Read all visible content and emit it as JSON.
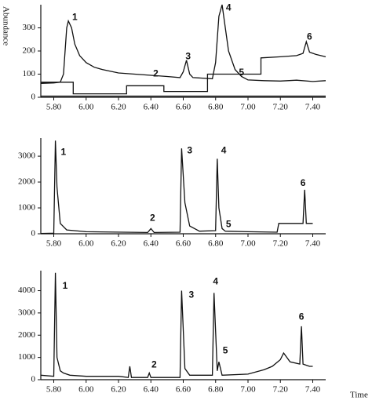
{
  "y_label": "Abundance",
  "x_label": "Time",
  "chart_data": [
    {
      "type": "line",
      "xlim": [
        5.72,
        7.48
      ],
      "ylim": [
        0,
        400
      ],
      "xticks": [
        {
          "value": 5.8,
          "label": "5.80"
        },
        {
          "value": 6.0,
          "label": "6.00"
        },
        {
          "value": 6.2,
          "label": "6.20"
        },
        {
          "value": 6.4,
          "label": "6.40"
        },
        {
          "value": 6.6,
          "label": "6.60"
        },
        {
          "value": 6.8,
          "label": "6.80"
        },
        {
          "value": 7.0,
          "label": "7.00"
        },
        {
          "value": 7.2,
          "label": "7.20"
        },
        {
          "value": 7.4,
          "label": "7.40"
        }
      ],
      "yticks": [
        0,
        100,
        200,
        300
      ],
      "series": [
        {
          "color": "#111",
          "x": [
            5.72,
            5.8,
            5.84,
            5.86,
            5.88,
            5.89,
            5.91,
            5.93,
            5.96,
            6.0,
            6.05,
            6.1,
            6.2,
            6.3,
            6.4,
            6.5,
            6.58,
            6.6,
            6.62,
            6.64,
            6.66,
            6.78,
            6.8,
            6.82,
            6.84,
            6.86,
            6.88,
            6.92,
            6.96,
            7.0,
            7.1,
            7.2,
            7.3,
            7.4,
            7.48
          ],
          "values": [
            60,
            62,
            65,
            100,
            300,
            330,
            300,
            230,
            180,
            150,
            130,
            120,
            105,
            100,
            95,
            90,
            85,
            110,
            160,
            100,
            85,
            80,
            150,
            350,
            400,
            300,
            200,
            120,
            90,
            75,
            72,
            70,
            74,
            68,
            72
          ]
        },
        {
          "color": "#111",
          "x": [
            5.72,
            5.92,
            5.92,
            6.25,
            6.25,
            6.48,
            6.48,
            6.75,
            6.75,
            7.08,
            7.08,
            7.2,
            7.3,
            7.34,
            7.36,
            7.38,
            7.42,
            7.48
          ],
          "values": [
            65,
            65,
            15,
            15,
            50,
            50,
            25,
            25,
            100,
            100,
            170,
            175,
            180,
            190,
            240,
            195,
            185,
            175
          ]
        },
        {
          "color": "#111",
          "x": [
            5.72,
            7.48
          ],
          "values": [
            5,
            5
          ]
        }
      ],
      "annotations": [
        {
          "text": "1",
          "x": 5.93,
          "y": 345
        },
        {
          "text": "2",
          "x": 6.43,
          "y": 100
        },
        {
          "text": "3",
          "x": 6.63,
          "y": 175
        },
        {
          "text": "4",
          "x": 6.88,
          "y": 385
        },
        {
          "text": "5",
          "x": 6.96,
          "y": 105
        },
        {
          "text": "6",
          "x": 7.38,
          "y": 260
        }
      ]
    },
    {
      "type": "line",
      "xlim": [
        5.72,
        7.48
      ],
      "ylim": [
        0,
        3700
      ],
      "xticks": [
        {
          "value": 5.8,
          "label": "5.80"
        },
        {
          "value": 6.0,
          "label": "6.00"
        },
        {
          "value": 6.2,
          "label": "6.20"
        },
        {
          "value": 6.4,
          "label": "6.40"
        },
        {
          "value": 6.6,
          "label": "6.60"
        },
        {
          "value": 6.8,
          "label": "6.80"
        },
        {
          "value": 7.0,
          "label": "7.00"
        },
        {
          "value": 7.2,
          "label": "7.20"
        },
        {
          "value": 7.4,
          "label": "7.40"
        }
      ],
      "yticks": [
        0,
        1000,
        2000,
        3000
      ],
      "series": [
        {
          "color": "#111",
          "x": [
            5.72,
            5.8,
            5.81,
            5.82,
            5.84,
            5.88,
            6.0,
            6.38,
            6.4,
            6.42,
            6.58,
            6.59,
            6.61,
            6.64,
            6.7,
            6.8,
            6.81,
            6.82,
            6.84,
            6.86,
            7.0,
            7.18,
            7.19,
            7.34,
            7.35,
            7.36,
            7.4
          ],
          "values": [
            10,
            20,
            3600,
            1800,
            400,
            150,
            80,
            50,
            200,
            50,
            60,
            3300,
            1200,
            300,
            100,
            120,
            2900,
            1000,
            200,
            100,
            80,
            60,
            400,
            400,
            1700,
            400,
            400
          ]
        }
      ],
      "annotations": [
        {
          "text": "1",
          "x": 5.86,
          "y": 3150
        },
        {
          "text": "2",
          "x": 6.41,
          "y": 600
        },
        {
          "text": "3",
          "x": 6.64,
          "y": 3200
        },
        {
          "text": "4",
          "x": 6.85,
          "y": 3200
        },
        {
          "text": "5",
          "x": 6.88,
          "y": 350
        },
        {
          "text": "6",
          "x": 7.34,
          "y": 1950
        }
      ]
    },
    {
      "type": "line",
      "xlim": [
        5.72,
        7.48
      ],
      "ylim": [
        0,
        4900
      ],
      "xticks": [
        {
          "value": 5.8,
          "label": "5.80"
        },
        {
          "value": 6.0,
          "label": "6.00"
        },
        {
          "value": 6.2,
          "label": "6.20"
        },
        {
          "value": 6.4,
          "label": "6.40"
        },
        {
          "value": 6.6,
          "label": "6.60"
        },
        {
          "value": 6.8,
          "label": "6.80"
        },
        {
          "value": 7.0,
          "label": "7.00"
        },
        {
          "value": 7.2,
          "label": "7.20"
        },
        {
          "value": 7.4,
          "label": "7.40"
        }
      ],
      "yticks": [
        0,
        1000,
        2000,
        3000,
        4000
      ],
      "series": [
        {
          "color": "#111",
          "x": [
            5.72,
            5.8,
            5.81,
            5.82,
            5.84,
            5.86,
            5.9,
            6.0,
            6.2,
            6.26,
            6.27,
            6.28,
            6.38,
            6.39,
            6.4,
            6.58,
            6.59,
            6.61,
            6.64,
            6.78,
            6.79,
            6.81,
            6.82,
            6.84,
            7.0,
            7.1,
            7.15,
            7.2,
            7.22,
            7.26,
            7.32,
            7.33,
            7.34,
            7.38,
            7.4
          ],
          "values": [
            200,
            150,
            4800,
            1000,
            400,
            300,
            200,
            150,
            150,
            100,
            600,
            100,
            100,
            300,
            100,
            100,
            4000,
            500,
            200,
            200,
            3900,
            400,
            800,
            200,
            250,
            450,
            600,
            900,
            1200,
            800,
            700,
            2400,
            700,
            600,
            600
          ]
        }
      ],
      "annotations": [
        {
          "text": "1",
          "x": 5.87,
          "y": 4200
        },
        {
          "text": "2",
          "x": 6.42,
          "y": 650
        },
        {
          "text": "3",
          "x": 6.65,
          "y": 3800
        },
        {
          "text": "4",
          "x": 6.8,
          "y": 4400
        },
        {
          "text": "5",
          "x": 6.86,
          "y": 1300
        },
        {
          "text": "6",
          "x": 7.33,
          "y": 2800
        }
      ]
    }
  ]
}
